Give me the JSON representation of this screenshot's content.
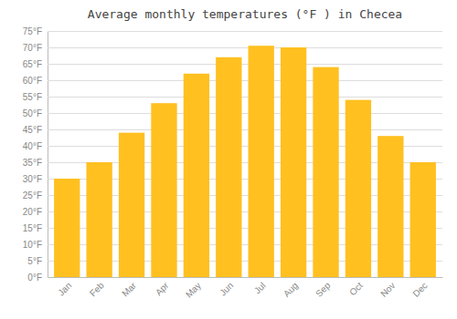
{
  "chart_data": {
    "type": "bar",
    "title": "Average monthly temperatures (°F ) in Checea",
    "categories": [
      "Jan",
      "Feb",
      "Mar",
      "Apr",
      "May",
      "Jun",
      "Jul",
      "Aug",
      "Sep",
      "Oct",
      "Nov",
      "Dec"
    ],
    "values": [
      30,
      35,
      44,
      53,
      62,
      67,
      70.5,
      70,
      64,
      54,
      43,
      35
    ],
    "color": "#FFC020",
    "ylim": [
      0,
      75
    ],
    "yticks": [
      {
        "value": 0,
        "label": "0°F"
      },
      {
        "value": 5,
        "label": "5°F"
      },
      {
        "value": 10,
        "label": "10°F"
      },
      {
        "value": 15,
        "label": "15°F"
      },
      {
        "value": 20,
        "label": "20°F"
      },
      {
        "value": 25,
        "label": "25°F"
      },
      {
        "value": 30,
        "label": "30°F"
      },
      {
        "value": 35,
        "label": "35°F"
      },
      {
        "value": 40,
        "label": "40°F"
      },
      {
        "value": 45,
        "label": "45°F"
      },
      {
        "value": 50,
        "label": "50°F"
      },
      {
        "value": 55,
        "label": "55°F"
      },
      {
        "value": 60,
        "label": "60°F"
      },
      {
        "value": 65,
        "label": "65°F"
      },
      {
        "value": 70,
        "label": "70°F"
      },
      {
        "value": 75,
        "label": "75°F"
      }
    ],
    "grid": true
  }
}
